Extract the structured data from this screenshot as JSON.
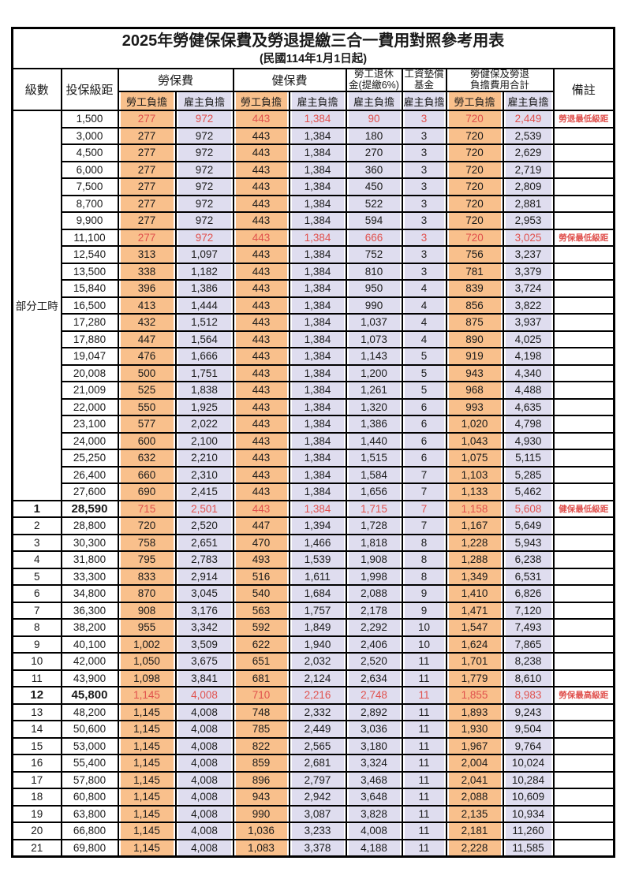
{
  "title": "2025年勞健保保費及勞退提繳三合一費用對照參考用表",
  "subtitle": "(民國114年1月1日起)",
  "colors": {
    "employee_fill": "#F9C08C",
    "employer_fill": "#DFDDEF",
    "highlight_text": "#E0514D",
    "border": "#000000"
  },
  "header": {
    "level": "級數",
    "bracket": "投保級距",
    "labor_group": "勞保費",
    "health_group": "健保費",
    "pension_line1": "勞工退休",
    "pension_line2": "金(提繳6%)",
    "fund_line1": "工資墊償",
    "fund_line2": "基金",
    "total_line1": "勞健保及勞退",
    "total_line2": "負擔費用合計",
    "note": "備註",
    "employee": "勞工負擔",
    "employer": "雇主負擔"
  },
  "part_time_label": "部分工時",
  "rows": [
    {
      "level": "",
      "bracket": "1,500",
      "values": [
        "277",
        "972",
        "443",
        "1,384",
        "90",
        "3",
        "720",
        "2,449"
      ],
      "note": "勞退最低級距",
      "red": true,
      "em": false
    },
    {
      "level": "",
      "bracket": "3,000",
      "values": [
        "277",
        "972",
        "443",
        "1,384",
        "180",
        "3",
        "720",
        "2,539"
      ],
      "note": "",
      "red": false,
      "em": false
    },
    {
      "level": "",
      "bracket": "4,500",
      "values": [
        "277",
        "972",
        "443",
        "1,384",
        "270",
        "3",
        "720",
        "2,629"
      ],
      "note": "",
      "red": false,
      "em": false
    },
    {
      "level": "",
      "bracket": "6,000",
      "values": [
        "277",
        "972",
        "443",
        "1,384",
        "360",
        "3",
        "720",
        "2,719"
      ],
      "note": "",
      "red": false,
      "em": false
    },
    {
      "level": "",
      "bracket": "7,500",
      "values": [
        "277",
        "972",
        "443",
        "1,384",
        "450",
        "3",
        "720",
        "2,809"
      ],
      "note": "",
      "red": false,
      "em": false
    },
    {
      "level": "",
      "bracket": "8,700",
      "values": [
        "277",
        "972",
        "443",
        "1,384",
        "522",
        "3",
        "720",
        "2,881"
      ],
      "note": "",
      "red": false,
      "em": false
    },
    {
      "level": "",
      "bracket": "9,900",
      "values": [
        "277",
        "972",
        "443",
        "1,384",
        "594",
        "3",
        "720",
        "2,953"
      ],
      "note": "",
      "red": false,
      "em": false
    },
    {
      "level": "",
      "bracket": "11,100",
      "values": [
        "277",
        "972",
        "443",
        "1,384",
        "666",
        "3",
        "720",
        "3,025"
      ],
      "note": "勞保最低級距",
      "red": true,
      "em": false
    },
    {
      "level": "",
      "bracket": "12,540",
      "values": [
        "313",
        "1,097",
        "443",
        "1,384",
        "752",
        "3",
        "756",
        "3,237"
      ],
      "note": "",
      "red": false,
      "em": false
    },
    {
      "level": "",
      "bracket": "13,500",
      "values": [
        "338",
        "1,182",
        "443",
        "1,384",
        "810",
        "3",
        "781",
        "3,379"
      ],
      "note": "",
      "red": false,
      "em": false
    },
    {
      "level": "",
      "bracket": "15,840",
      "values": [
        "396",
        "1,386",
        "443",
        "1,384",
        "950",
        "4",
        "839",
        "3,724"
      ],
      "note": "",
      "red": false,
      "em": false
    },
    {
      "level": "",
      "bracket": "16,500",
      "values": [
        "413",
        "1,444",
        "443",
        "1,384",
        "990",
        "4",
        "856",
        "3,822"
      ],
      "note": "",
      "red": false,
      "em": false
    },
    {
      "level": "",
      "bracket": "17,280",
      "values": [
        "432",
        "1,512",
        "443",
        "1,384",
        "1,037",
        "4",
        "875",
        "3,937"
      ],
      "note": "",
      "red": false,
      "em": false
    },
    {
      "level": "",
      "bracket": "17,880",
      "values": [
        "447",
        "1,564",
        "443",
        "1,384",
        "1,073",
        "4",
        "890",
        "4,025"
      ],
      "note": "",
      "red": false,
      "em": false
    },
    {
      "level": "",
      "bracket": "19,047",
      "values": [
        "476",
        "1,666",
        "443",
        "1,384",
        "1,143",
        "5",
        "919",
        "4,198"
      ],
      "note": "",
      "red": false,
      "em": false
    },
    {
      "level": "",
      "bracket": "20,008",
      "values": [
        "500",
        "1,751",
        "443",
        "1,384",
        "1,200",
        "5",
        "943",
        "4,340"
      ],
      "note": "",
      "red": false,
      "em": false
    },
    {
      "level": "",
      "bracket": "21,009",
      "values": [
        "525",
        "1,838",
        "443",
        "1,384",
        "1,261",
        "5",
        "968",
        "4,488"
      ],
      "note": "",
      "red": false,
      "em": false
    },
    {
      "level": "",
      "bracket": "22,000",
      "values": [
        "550",
        "1,925",
        "443",
        "1,384",
        "1,320",
        "6",
        "993",
        "4,635"
      ],
      "note": "",
      "red": false,
      "em": false
    },
    {
      "level": "",
      "bracket": "23,100",
      "values": [
        "577",
        "2,022",
        "443",
        "1,384",
        "1,386",
        "6",
        "1,020",
        "4,798"
      ],
      "note": "",
      "red": false,
      "em": false
    },
    {
      "level": "",
      "bracket": "24,000",
      "values": [
        "600",
        "2,100",
        "443",
        "1,384",
        "1,440",
        "6",
        "1,043",
        "4,930"
      ],
      "note": "",
      "red": false,
      "em": false
    },
    {
      "level": "",
      "bracket": "25,250",
      "values": [
        "632",
        "2,210",
        "443",
        "1,384",
        "1,515",
        "6",
        "1,075",
        "5,115"
      ],
      "note": "",
      "red": false,
      "em": false
    },
    {
      "level": "",
      "bracket": "26,400",
      "values": [
        "660",
        "2,310",
        "443",
        "1,384",
        "1,584",
        "7",
        "1,103",
        "5,285"
      ],
      "note": "",
      "red": false,
      "em": false
    },
    {
      "level": "",
      "bracket": "27,600",
      "values": [
        "690",
        "2,415",
        "443",
        "1,384",
        "1,656",
        "7",
        "1,133",
        "5,462"
      ],
      "note": "",
      "red": false,
      "em": false
    },
    {
      "level": "1",
      "bracket": "28,590",
      "values": [
        "715",
        "2,501",
        "443",
        "1,384",
        "1,715",
        "7",
        "1,158",
        "5,608"
      ],
      "note": "健保最低級距",
      "red": true,
      "em": true
    },
    {
      "level": "2",
      "bracket": "28,800",
      "values": [
        "720",
        "2,520",
        "447",
        "1,394",
        "1,728",
        "7",
        "1,167",
        "5,649"
      ],
      "note": "",
      "red": false,
      "em": false
    },
    {
      "level": "3",
      "bracket": "30,300",
      "values": [
        "758",
        "2,651",
        "470",
        "1,466",
        "1,818",
        "8",
        "1,228",
        "5,943"
      ],
      "note": "",
      "red": false,
      "em": false
    },
    {
      "level": "4",
      "bracket": "31,800",
      "values": [
        "795",
        "2,783",
        "493",
        "1,539",
        "1,908",
        "8",
        "1,288",
        "6,238"
      ],
      "note": "",
      "red": false,
      "em": false
    },
    {
      "level": "5",
      "bracket": "33,300",
      "values": [
        "833",
        "2,914",
        "516",
        "1,611",
        "1,998",
        "8",
        "1,349",
        "6,531"
      ],
      "note": "",
      "red": false,
      "em": false
    },
    {
      "level": "6",
      "bracket": "34,800",
      "values": [
        "870",
        "3,045",
        "540",
        "1,684",
        "2,088",
        "9",
        "1,410",
        "6,826"
      ],
      "note": "",
      "red": false,
      "em": false
    },
    {
      "level": "7",
      "bracket": "36,300",
      "values": [
        "908",
        "3,176",
        "563",
        "1,757",
        "2,178",
        "9",
        "1,471",
        "7,120"
      ],
      "note": "",
      "red": false,
      "em": false
    },
    {
      "level": "8",
      "bracket": "38,200",
      "values": [
        "955",
        "3,342",
        "592",
        "1,849",
        "2,292",
        "10",
        "1,547",
        "7,493"
      ],
      "note": "",
      "red": false,
      "em": false
    },
    {
      "level": "9",
      "bracket": "40,100",
      "values": [
        "1,002",
        "3,509",
        "622",
        "1,940",
        "2,406",
        "10",
        "1,624",
        "7,865"
      ],
      "note": "",
      "red": false,
      "em": false
    },
    {
      "level": "10",
      "bracket": "42,000",
      "values": [
        "1,050",
        "3,675",
        "651",
        "2,032",
        "2,520",
        "11",
        "1,701",
        "8,238"
      ],
      "note": "",
      "red": false,
      "em": false
    },
    {
      "level": "11",
      "bracket": "43,900",
      "values": [
        "1,098",
        "3,841",
        "681",
        "2,124",
        "2,634",
        "11",
        "1,779",
        "8,610"
      ],
      "note": "",
      "red": false,
      "em": false
    },
    {
      "level": "12",
      "bracket": "45,800",
      "values": [
        "1,145",
        "4,008",
        "710",
        "2,216",
        "2,748",
        "11",
        "1,855",
        "8,983"
      ],
      "note": "勞保最高級距",
      "red": true,
      "em": true
    },
    {
      "level": "13",
      "bracket": "48,200",
      "values": [
        "1,145",
        "4,008",
        "748",
        "2,332",
        "2,892",
        "11",
        "1,893",
        "9,243"
      ],
      "note": "",
      "red": false,
      "em": false
    },
    {
      "level": "14",
      "bracket": "50,600",
      "values": [
        "1,145",
        "4,008",
        "785",
        "2,449",
        "3,036",
        "11",
        "1,930",
        "9,504"
      ],
      "note": "",
      "red": false,
      "em": false
    },
    {
      "level": "15",
      "bracket": "53,000",
      "values": [
        "1,145",
        "4,008",
        "822",
        "2,565",
        "3,180",
        "11",
        "1,967",
        "9,764"
      ],
      "note": "",
      "red": false,
      "em": false
    },
    {
      "level": "16",
      "bracket": "55,400",
      "values": [
        "1,145",
        "4,008",
        "859",
        "2,681",
        "3,324",
        "11",
        "2,004",
        "10,024"
      ],
      "note": "",
      "red": false,
      "em": false
    },
    {
      "level": "17",
      "bracket": "57,800",
      "values": [
        "1,145",
        "4,008",
        "896",
        "2,797",
        "3,468",
        "11",
        "2,041",
        "10,284"
      ],
      "note": "",
      "red": false,
      "em": false
    },
    {
      "level": "18",
      "bracket": "60,800",
      "values": [
        "1,145",
        "4,008",
        "943",
        "2,942",
        "3,648",
        "11",
        "2,088",
        "10,609"
      ],
      "note": "",
      "red": false,
      "em": false
    },
    {
      "level": "19",
      "bracket": "63,800",
      "values": [
        "1,145",
        "4,008",
        "990",
        "3,087",
        "3,828",
        "11",
        "2,135",
        "10,934"
      ],
      "note": "",
      "red": false,
      "em": false
    },
    {
      "level": "20",
      "bracket": "66,800",
      "values": [
        "1,145",
        "4,008",
        "1,036",
        "3,233",
        "4,008",
        "11",
        "2,181",
        "11,260"
      ],
      "note": "",
      "red": false,
      "em": false
    },
    {
      "level": "21",
      "bracket": "69,800",
      "values": [
        "1,145",
        "4,008",
        "1,083",
        "3,378",
        "4,188",
        "11",
        "2,228",
        "11,585"
      ],
      "note": "",
      "red": false,
      "em": false
    }
  ]
}
